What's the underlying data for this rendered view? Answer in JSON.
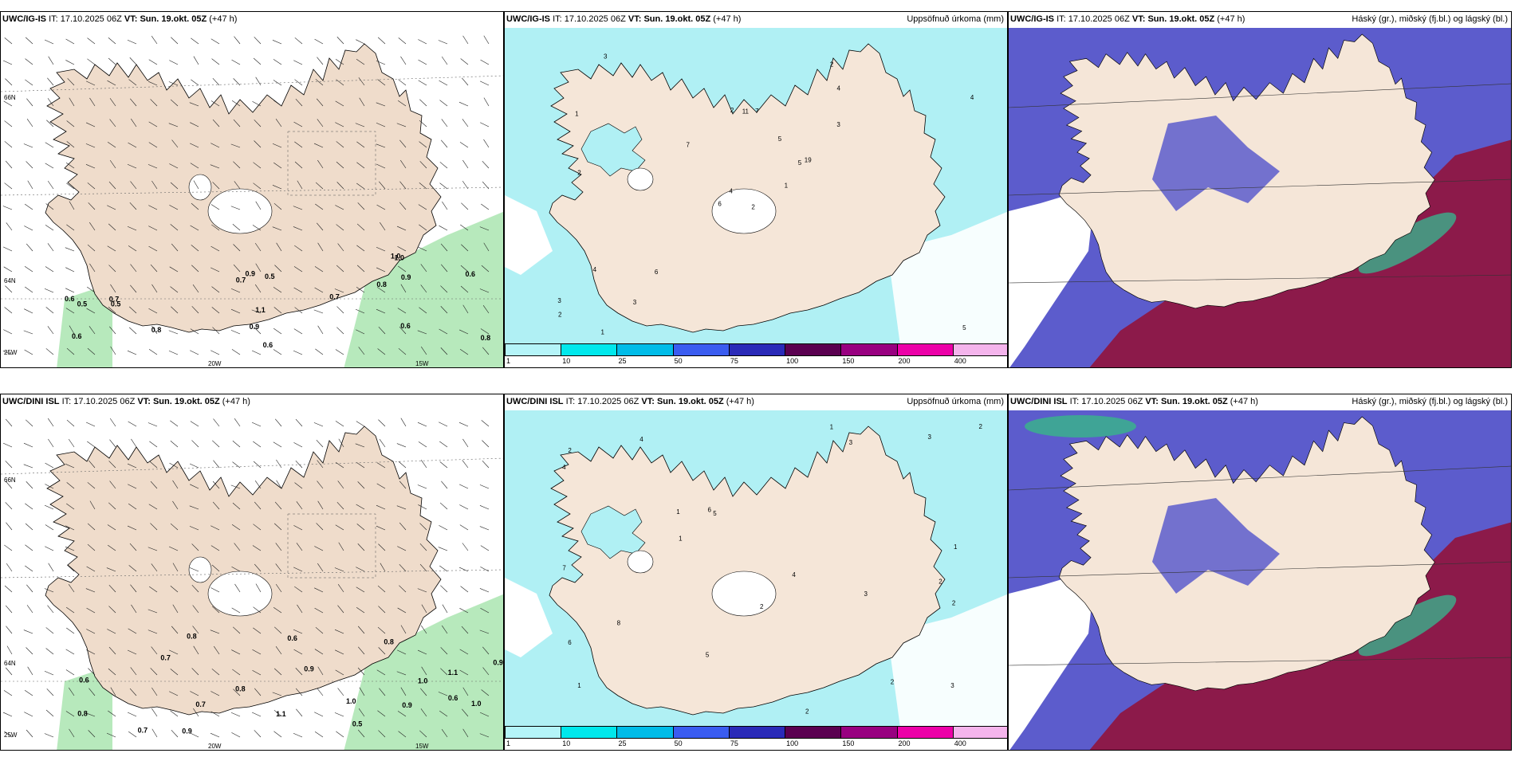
{
  "row1": {
    "wind_panel": {
      "model": "UWC/IG-IS",
      "it_label": "IT:",
      "it": "17.10.2025 06Z",
      "vt_label": "VT:",
      "vt": "Sun. 19.okt. 05Z",
      "lead": "(+47 h)"
    },
    "precip_panel": {
      "model": "UWC/IG-IS",
      "it_label": "IT:",
      "it": "17.10.2025 06Z",
      "vt_label": "VT:",
      "vt": "Sun. 19.okt. 05Z",
      "lead": "(+47 h)",
      "title": "Uppsöfnuð úrkoma (mm)"
    },
    "cloud_panel": {
      "model": "UWC/IG-IS",
      "it_label": "IT:",
      "it": "17.10.2025 06Z",
      "vt_label": "VT:",
      "vt": "Sun. 19.okt. 05Z",
      "lead": "(+47 h)",
      "title": "Háský (gr.), miðský (fj.bl.) og lágský (bl.)"
    }
  },
  "row2": {
    "wind_panel": {
      "model": "UWC/DINI ISL",
      "it_label": "IT:",
      "it": "17.10.2025 06Z",
      "vt_label": "VT:",
      "vt": "Sun. 19.okt. 05Z",
      "lead": "(+47 h)"
    },
    "precip_panel": {
      "model": "UWC/DINI ISL",
      "it_label": "IT:",
      "it": "17.10.2025 06Z",
      "vt_label": "VT:",
      "vt": "Sun. 19.okt. 05Z",
      "lead": "(+47 h)",
      "title": "Uppsöfnuð úrkoma (mm)"
    },
    "cloud_panel": {
      "model": "UWC/DINI ISL",
      "it_label": "IT:",
      "it": "17.10.2025 06Z",
      "vt_label": "VT:",
      "vt": "Sun. 19.okt. 05Z",
      "lead": "(+47 h)",
      "title": "Háský (gr.), miðský (fj.bl.) og lágský (bl.)"
    }
  },
  "axis_labels": {
    "lat66": "66N",
    "lat64": "64N",
    "lon25": "25W",
    "lon20": "20W",
    "lon15": "15W"
  },
  "colorbar": {
    "levels": [
      "1",
      "10",
      "25",
      "50",
      "75",
      "100",
      "150",
      "200",
      "400"
    ],
    "colors": [
      "#b4f4f8",
      "#00e8ec",
      "#00bce8",
      "#3a5cf0",
      "#2a2ab8",
      "#5a0050",
      "#980080",
      "#ec00a8",
      "#f4b4ec"
    ]
  },
  "colors": {
    "land": "#f5e6d8",
    "land_wind": "#efdccb",
    "cyan": "#b0f0f4",
    "cloud_blue": "#5c5ccc",
    "cloud_red": "#8c1a4a",
    "cloud_green": "#3ab08c",
    "wind_green": "#98e0a0"
  },
  "values_row1_wind": [
    "0.5",
    "0.9",
    "0.7",
    "0.6",
    "0.5",
    "0.9",
    "0.6",
    "0.8",
    "0.7",
    "1.0",
    "0.7",
    "0.6",
    "0.8",
    "0.5",
    "1.1",
    "0.6",
    "0.9",
    "1.0",
    "0.8",
    "0.6"
  ],
  "values_row2_wind": [
    "0.9",
    "0.6",
    "0.6",
    "1.0",
    "0.7",
    "0.9",
    "0.8",
    "0.8",
    "0.7",
    "1.0",
    "0.9",
    "0.6",
    "1.1",
    "0.8",
    "1.1",
    "0.9",
    "0.8",
    "0.7",
    "0.5",
    "1.0"
  ],
  "values_row1_precip": [
    "2",
    "1",
    "4",
    "3",
    "5",
    "6",
    "2",
    "7",
    "4",
    "1",
    "3",
    "5",
    "2",
    "4",
    "6",
    "3",
    "1",
    "2",
    "5",
    "4",
    "7",
    "2",
    "3",
    "11",
    "19"
  ],
  "values_row2_precip": [
    "3",
    "2",
    "1",
    "4",
    "5",
    "2",
    "6",
    "3",
    "1",
    "2",
    "4",
    "7",
    "2",
    "3",
    "5",
    "1",
    "2",
    "4",
    "6",
    "8",
    "2",
    "3",
    "1",
    "2",
    "1"
  ]
}
